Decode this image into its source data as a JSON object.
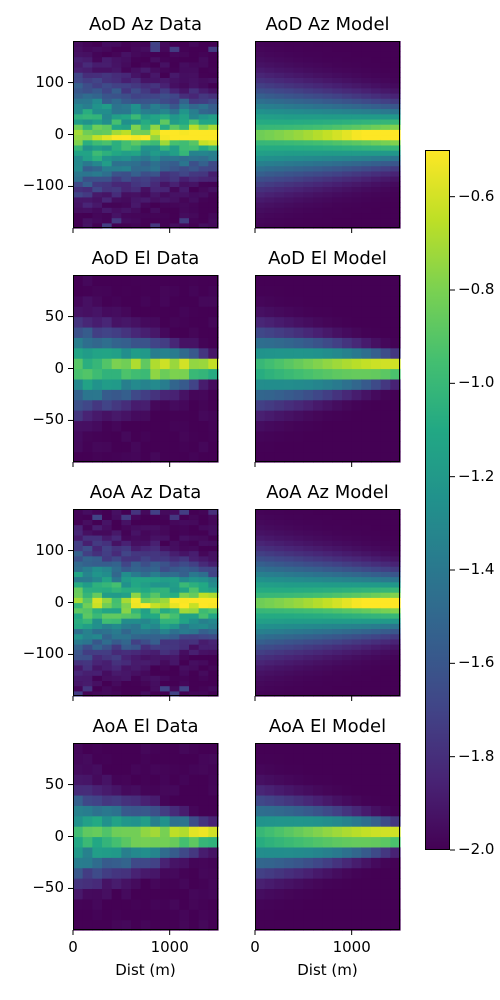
{
  "chart_data": {
    "type": "heatmap",
    "colormap": "viridis",
    "colorbar": {
      "range": [
        -2.0,
        -0.5
      ],
      "ticks": [
        "-0.6",
        "-0.8",
        "-1.0",
        "-1.2",
        "-1.4",
        "-1.6",
        "-1.8",
        "-2.0"
      ]
    },
    "x_ticks": [
      "0",
      "1000"
    ],
    "xlabel": "Dist (m)",
    "xlim": [
      0,
      1500
    ],
    "panels": [
      {
        "title": "AoD Az Data",
        "quantity": "az",
        "kind": "data",
        "ylim": [
          -180,
          180
        ],
        "y_ticks": [
          "100",
          "0",
          "−100"
        ]
      },
      {
        "title": "AoD Az Model",
        "quantity": "az",
        "kind": "model",
        "ylim": [
          -180,
          180
        ],
        "y_ticks": []
      },
      {
        "title": "AoD El Data",
        "quantity": "el",
        "kind": "data",
        "ylim": [
          -90,
          90
        ],
        "y_ticks": [
          "50",
          "0",
          "−50"
        ]
      },
      {
        "title": "AoD El Model",
        "quantity": "el",
        "kind": "model",
        "ylim": [
          -90,
          90
        ],
        "y_ticks": []
      },
      {
        "title": "AoA Az Data",
        "quantity": "az",
        "kind": "data",
        "ylim": [
          -180,
          180
        ],
        "y_ticks": [
          "100",
          "0",
          "−100"
        ]
      },
      {
        "title": "AoA Az Model",
        "quantity": "az",
        "kind": "model",
        "ylim": [
          -180,
          180
        ],
        "y_ticks": []
      },
      {
        "title": "AoA El Data",
        "quantity": "el",
        "kind": "data",
        "ylim": [
          -90,
          90
        ],
        "y_ticks": [
          "50",
          "0",
          "−50"
        ]
      },
      {
        "title": "AoA El Model",
        "quantity": "el",
        "kind": "model",
        "ylim": [
          -90,
          90
        ],
        "y_ticks": []
      }
    ]
  }
}
